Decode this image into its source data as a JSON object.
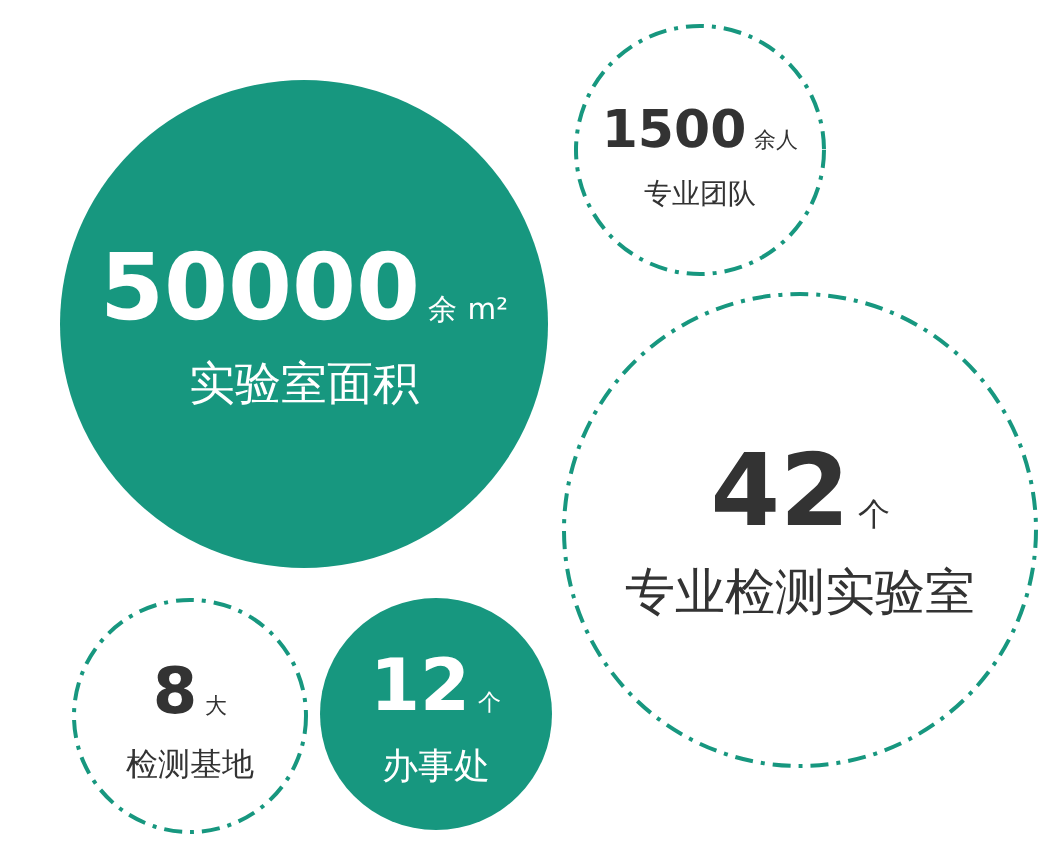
{
  "chart_data": {
    "type": "other",
    "categories": [
      "实验室面积",
      "专业团队",
      "专业检测实验室",
      "检测基地",
      "办事处"
    ],
    "series": [
      {
        "values": [
          50000,
          null,
          null,
          null,
          12
        ],
        "color": "#17977f",
        "line_style": "solid"
      },
      {
        "values": [
          null,
          1500,
          42,
          8,
          null
        ],
        "color": "#17977f",
        "line_style": "dashed"
      }
    ],
    "data_labels": true,
    "annotations": [
      "余 m²",
      "余人",
      "个",
      "大",
      "个"
    ]
  }
}
